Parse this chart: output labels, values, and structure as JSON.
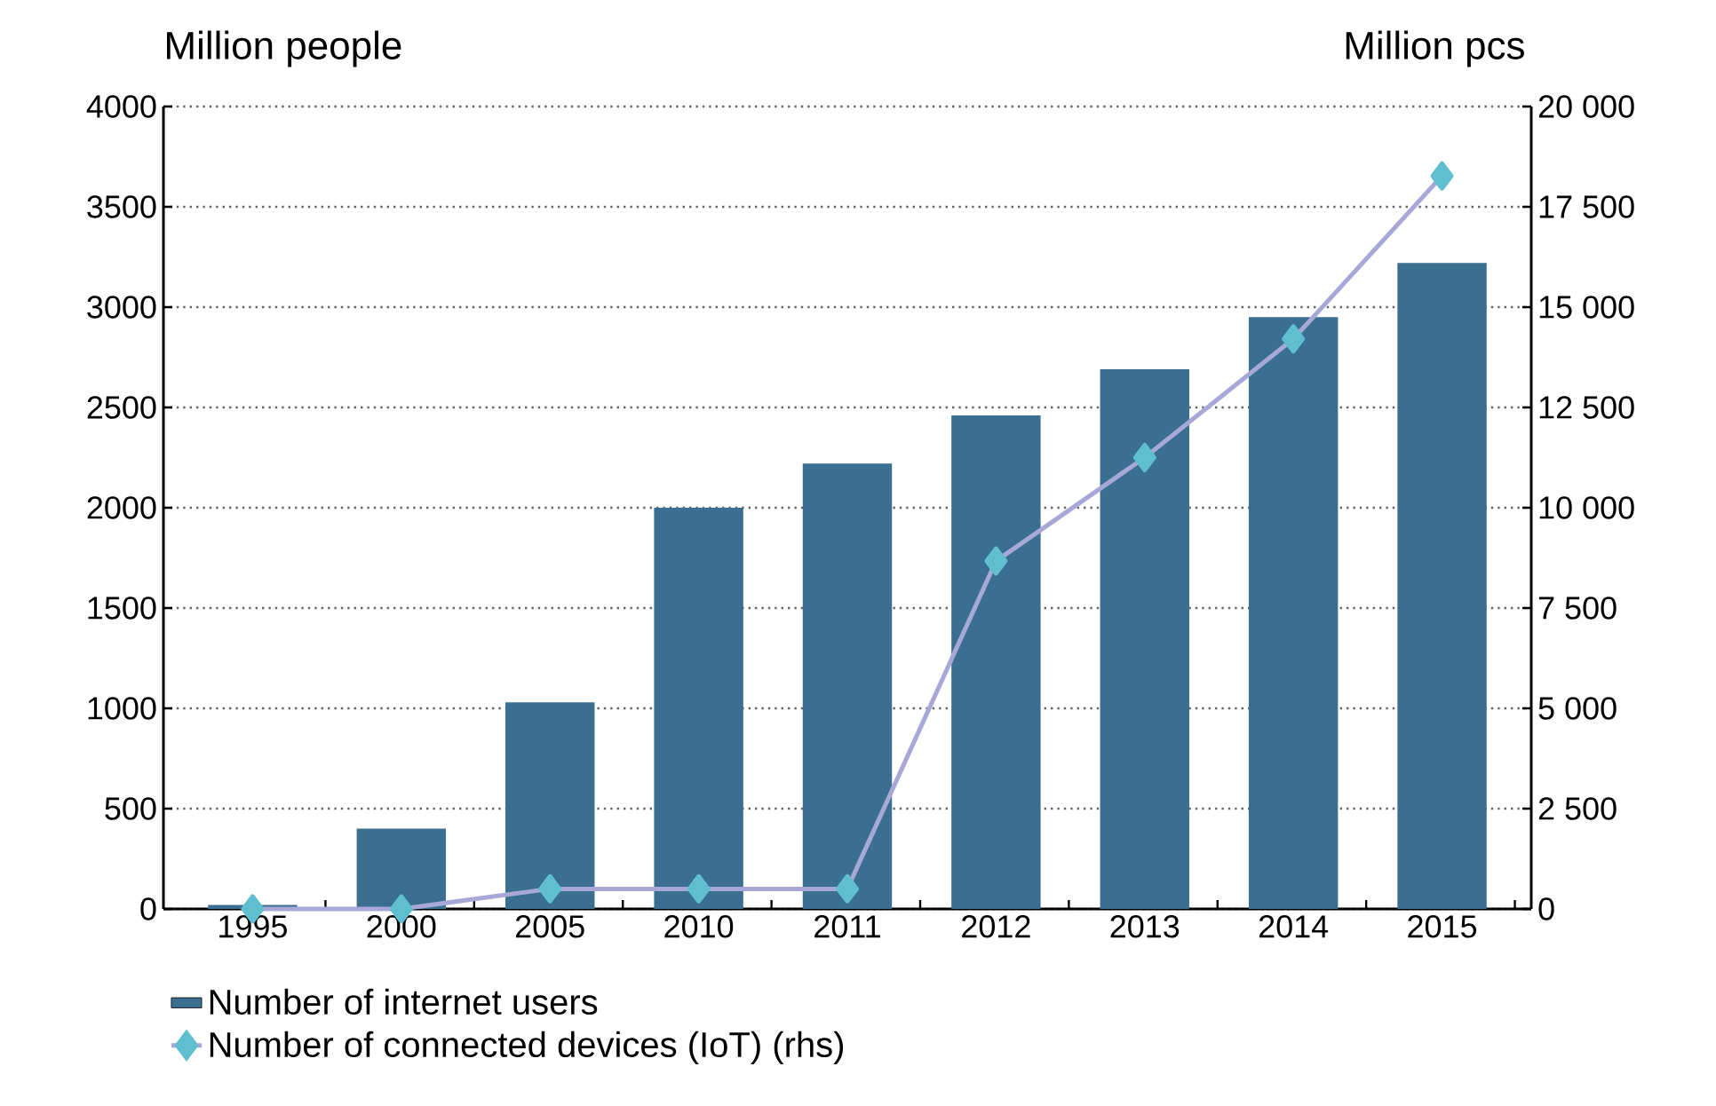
{
  "chart_data": {
    "type": "bar",
    "ylabel": "Million people",
    "y2label": "Million pcs",
    "categories": [
      "1995",
      "2000",
      "2005",
      "2010",
      "2011",
      "2012",
      "2013",
      "2014",
      "2015"
    ],
    "series": [
      {
        "name": "Number of internet users",
        "color": "#3a6f91",
        "values": [
          20,
          400,
          1030,
          2000,
          2220,
          2460,
          2690,
          2950,
          3220
        ]
      },
      {
        "name": "Number of connected devices (IoT) (rhs)",
        "type": "line",
        "axis": "y2",
        "color": "#a8a8d8",
        "marker": "diamond",
        "values": [
          0,
          0,
          500,
          500,
          500,
          8670,
          11250,
          14210,
          18270
        ]
      }
    ],
    "ylim": [
      0,
      4000
    ],
    "yticks": [
      0,
      500,
      1000,
      1500,
      2000,
      2500,
      3000,
      3500,
      4000
    ],
    "y2lim": [
      0,
      20000
    ],
    "y2ticks": [
      0,
      {
        "value": 2500,
        "label": "2 500"
      },
      {
        "value": 5000,
        "label": "5 000"
      },
      {
        "value": 7500,
        "label": "7 500"
      },
      {
        "value": 10000,
        "label": "10 000"
      },
      {
        "value": 12500,
        "label": "12 500"
      },
      {
        "value": 15000,
        "label": "15 000"
      },
      {
        "value": 17500,
        "label": "17 500"
      },
      {
        "value": 20000,
        "label": "20 000"
      }
    ],
    "grid": "y",
    "legend": "bottom left"
  }
}
